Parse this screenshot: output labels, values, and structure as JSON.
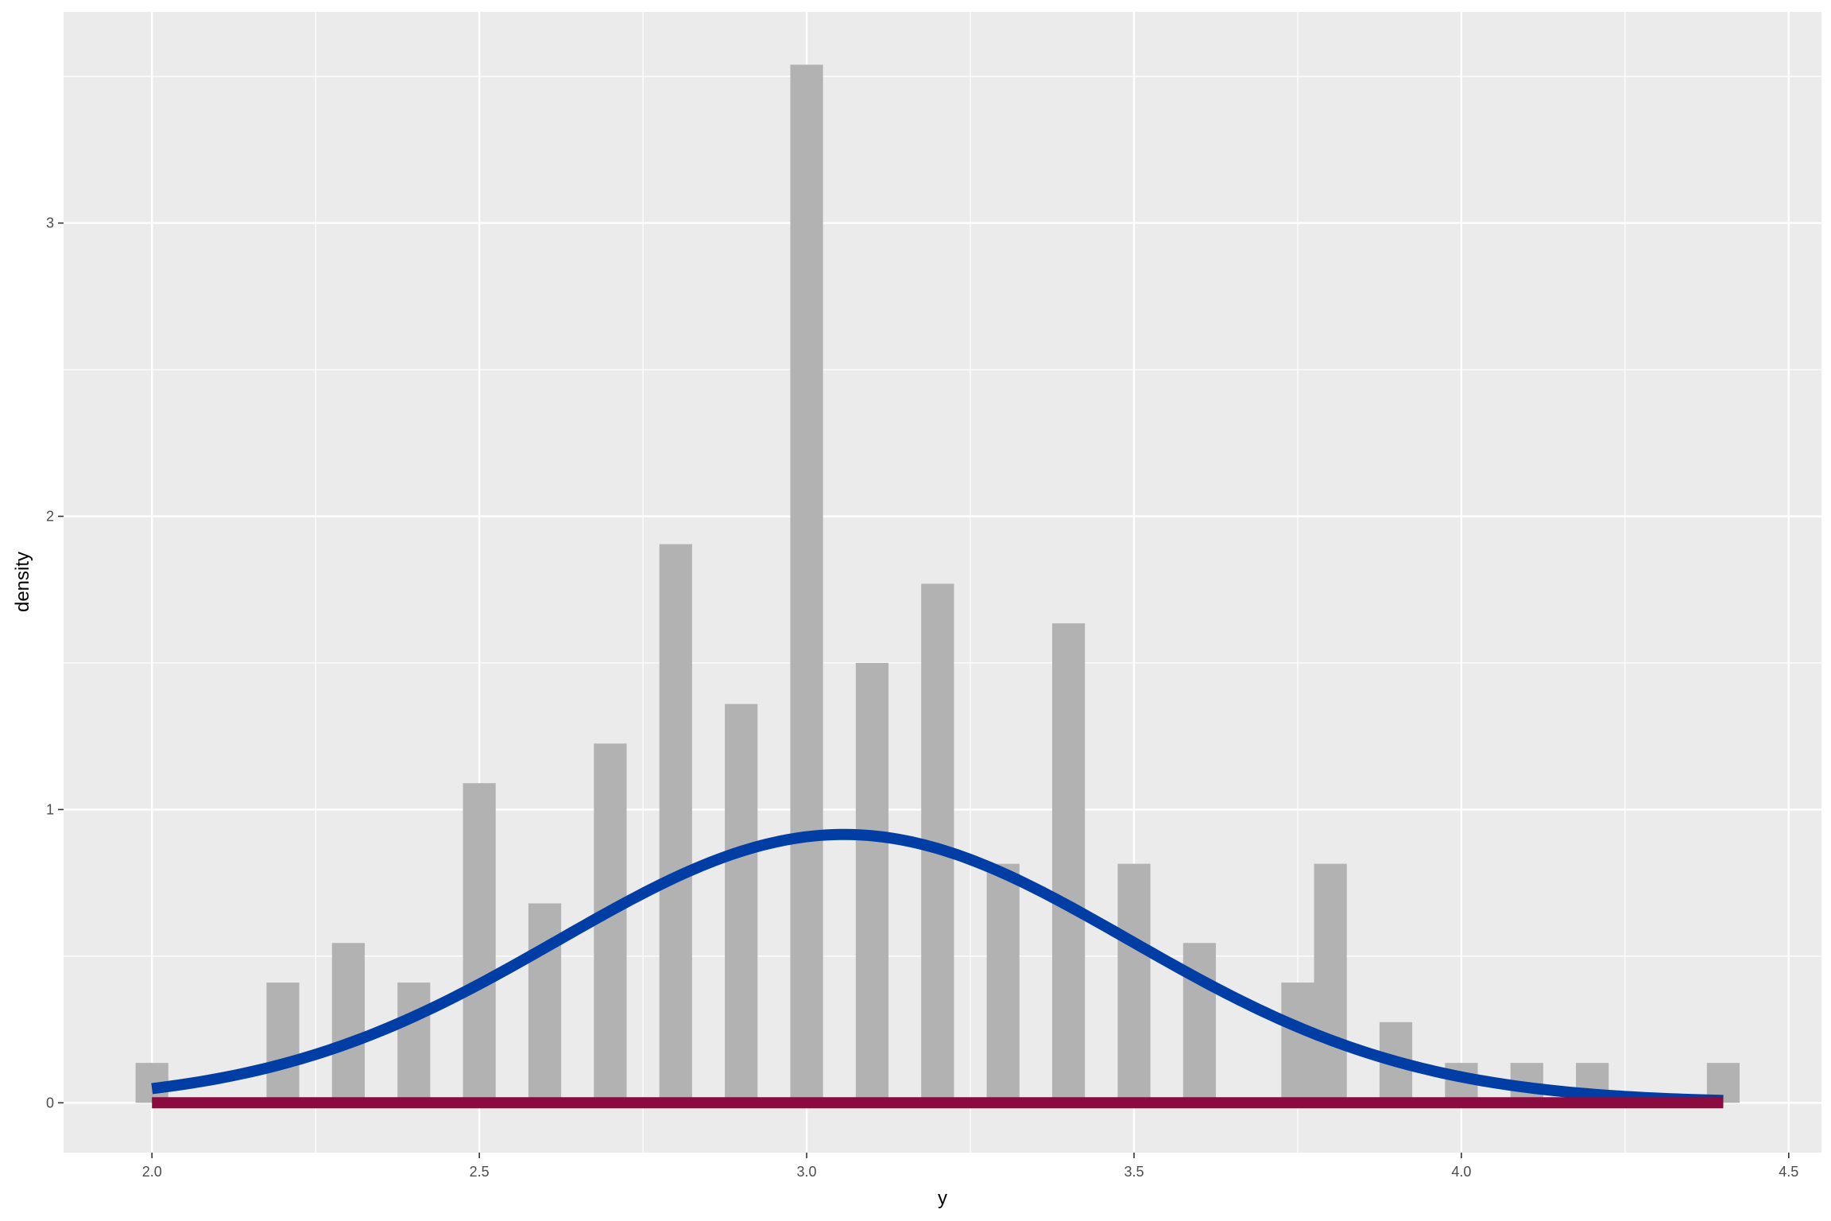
{
  "chart_data": {
    "type": "bar",
    "title": "",
    "xlabel": "y",
    "ylabel": "density",
    "xlim": [
      1.865,
      4.55
    ],
    "ylim": [
      -0.17,
      3.72
    ],
    "x_ticks": [
      2.0,
      2.5,
      3.0,
      3.5,
      4.0,
      4.5
    ],
    "x_tick_labels": [
      "2.0",
      "2.5",
      "3.0",
      "3.5",
      "4.0",
      "4.5"
    ],
    "y_ticks": [
      0,
      1,
      2,
      3
    ],
    "y_tick_labels": [
      "0",
      "1",
      "2",
      "3"
    ],
    "grid": true,
    "bar_width": 0.05,
    "bars": {
      "x": [
        2.0,
        2.2,
        2.3,
        2.4,
        2.5,
        2.6,
        2.7,
        2.8,
        2.9,
        3.0,
        3.1,
        3.2,
        3.3,
        3.4,
        3.5,
        3.6,
        3.75,
        3.8,
        3.9,
        4.0,
        4.1,
        4.2,
        4.4
      ],
      "density": [
        0.136,
        0.41,
        0.545,
        0.41,
        1.09,
        0.68,
        1.225,
        1.905,
        1.36,
        3.54,
        1.5,
        1.77,
        0.815,
        1.635,
        0.815,
        0.545,
        0.41,
        0.815,
        0.275,
        0.136,
        0.136,
        0.136,
        0.136
      ]
    },
    "series": [
      {
        "kind": "normal-density-curve",
        "mean": 3.057,
        "sd": 0.436,
        "x_range": [
          2.0,
          4.4
        ]
      },
      {
        "kind": "zero-line",
        "y": 0,
        "x_range": [
          2.0,
          4.4
        ]
      }
    ],
    "colors": {
      "panel_background": "#ebebeb",
      "grid_major": "#ffffff",
      "bars": "#b2b2b2",
      "curve": "#003da5",
      "baseline": "#8b0a3f"
    }
  }
}
